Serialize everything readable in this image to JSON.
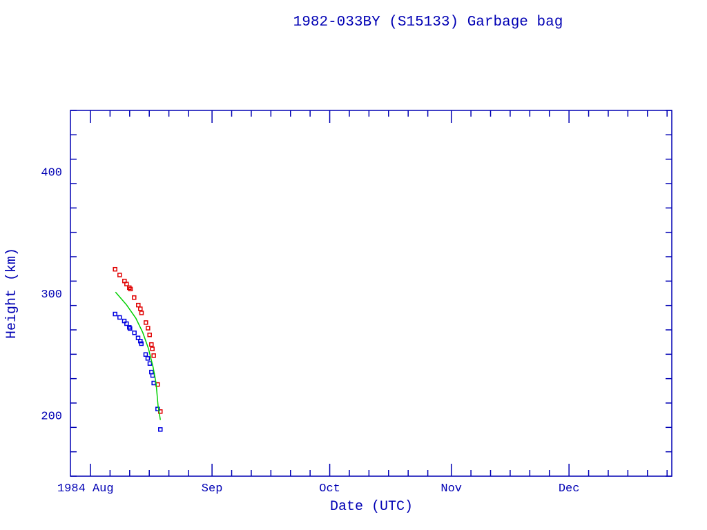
{
  "chart_data": {
    "type": "scatter",
    "title": "1982-033BY (S15133) Garbage bag",
    "xlabel": "Date (UTC)",
    "ylabel": "Height (km)",
    "x_units": "days since 1984 Aug 1 00:00 UTC",
    "xlim": [
      -5.1,
      148.2
    ],
    "ylim": [
      150,
      450
    ],
    "x_ticks": [
      {
        "value": 0,
        "label": "1984 Aug"
      },
      {
        "value": 31,
        "label": "Sep"
      },
      {
        "value": 61,
        "label": "Oct"
      },
      {
        "value": 92,
        "label": "Nov"
      },
      {
        "value": 122,
        "label": "Dec"
      }
    ],
    "y_ticks": [
      {
        "value": 200,
        "label": "200"
      },
      {
        "value": 300,
        "label": "300"
      },
      {
        "value": 400,
        "label": "400"
      }
    ],
    "y_minor_step": 20,
    "x_minor_step_days": 5,
    "grid": false,
    "colors": {
      "axis": "#0000b4",
      "apogee": "#e00000",
      "perigee": "#0000e0",
      "fit": "#00d000"
    },
    "series": [
      {
        "name": "apogee",
        "marker": "square",
        "color": "#e00000",
        "x": [
          6.29,
          7.45,
          8.68,
          9.21,
          9.91,
          10.21,
          11.14,
          12.2,
          12.73,
          13.03,
          14.14,
          14.67,
          15.09,
          15.55,
          15.79,
          16.14,
          17.13,
          17.83
        ],
        "y": [
          319.7,
          315.0,
          310.1,
          307.6,
          304.6,
          303.5,
          296.5,
          290.3,
          287.3,
          283.9,
          276.0,
          271.4,
          265.9,
          258.0,
          254.4,
          248.9,
          225.2,
          203.0
        ]
      },
      {
        "name": "perigee",
        "marker": "square",
        "color": "#0000e0",
        "x": [
          6.29,
          7.45,
          8.63,
          9.21,
          9.91,
          10.09,
          11.21,
          12.15,
          12.73,
          12.98,
          14.08,
          14.61,
          15.14,
          15.55,
          15.85,
          16.14,
          17.13,
          17.83
        ],
        "y": [
          283.0,
          280.2,
          277.3,
          275.1,
          272.1,
          271.1,
          267.6,
          263.4,
          260.8,
          258.7,
          249.8,
          246.6,
          242.4,
          235.4,
          232.6,
          226.4,
          205.1,
          188.3
        ]
      },
      {
        "name": "mean-height-fit",
        "marker": "line",
        "color": "#00d000",
        "x": [
          6.39,
          9.21,
          11.57,
          13.33,
          14.79,
          15.97,
          16.73,
          17.25,
          17.83
        ],
        "y": [
          301.0,
          290.5,
          279.6,
          267.9,
          254.7,
          239.5,
          226.3,
          207.5,
          196.1
        ]
      }
    ]
  }
}
